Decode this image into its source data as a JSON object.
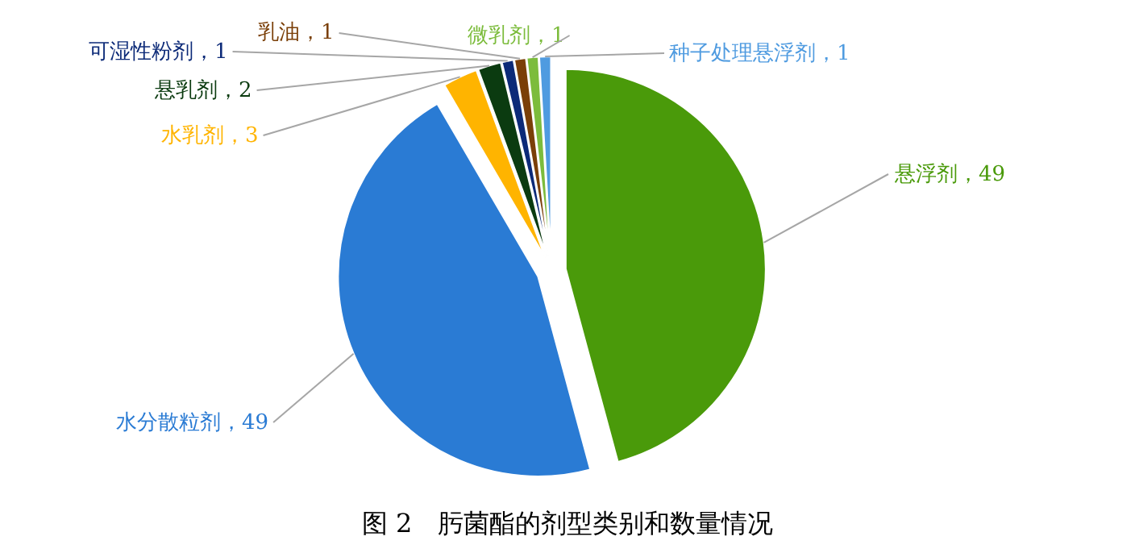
{
  "chart_data": {
    "type": "pie",
    "title": "图 2　肟菌酯的剂型类别和数量情况",
    "categories": [
      "悬浮剂",
      "水分散粒剂",
      "水乳剂",
      "悬乳剂",
      "可湿性粉剂",
      "乳油",
      "微乳剂",
      "种子处理悬浮剂"
    ],
    "values": [
      49,
      49,
      3,
      2,
      1,
      1,
      1,
      1
    ],
    "colors": [
      "#4a9a0a",
      "#2a7bd4",
      "#ffb400",
      "#0b3b10",
      "#0c2a78",
      "#7a3f08",
      "#7cbc3c",
      "#4f9be0"
    ],
    "value_labels": [
      "，49",
      "，49",
      "，3",
      "，2",
      "，1",
      "，1",
      "，1",
      "，1"
    ],
    "legend": false
  }
}
